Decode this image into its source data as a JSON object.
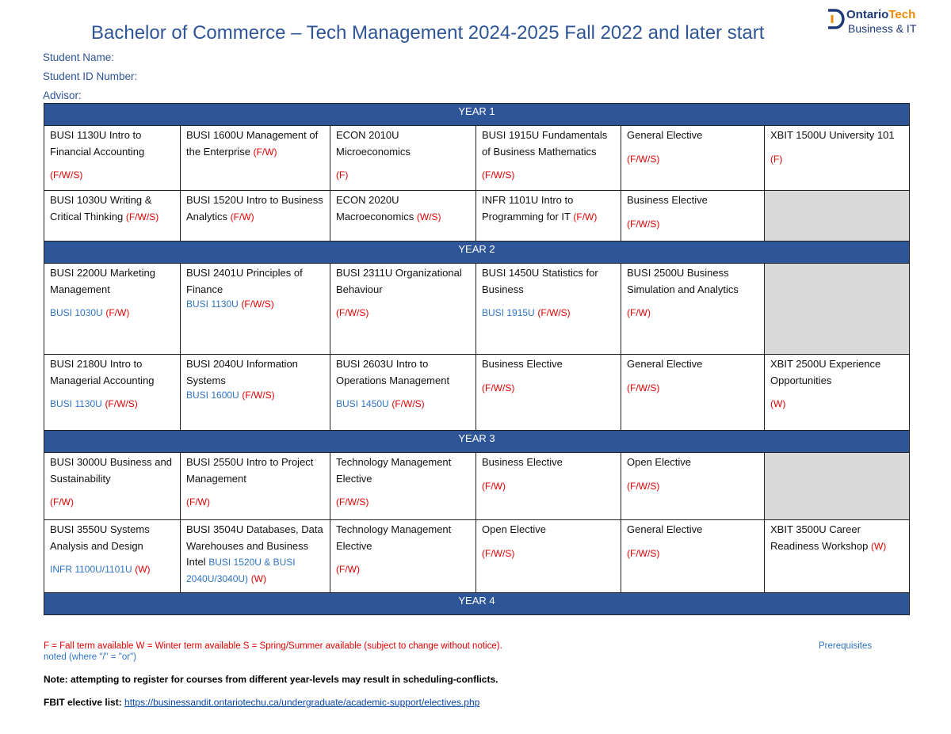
{
  "header": {
    "title": "Bachelor of Commerce – Tech Management 2024-2025 Fall 2022 and later start",
    "logo_name_part1": "Ontario",
    "logo_name_part2": "Tech",
    "logo_subtitle": "Business & IT"
  },
  "fields": [
    "Student Name:",
    "Student ID Number:",
    "Advisor:"
  ],
  "years": [
    {
      "label": "YEAR 1",
      "rows": [
        [
          {
            "course": "BUSI 1130U Intro to Financial Accounting",
            "terms": "(F/W/S)"
          },
          {
            "course": "BUSI 1600U Management of the Enterprise",
            "terms": "(F/W)"
          },
          {
            "course": "ECON 2010U Microeconomics",
            "terms": "(F)"
          },
          {
            "course": "BUSI 1915U Fundamentals of Business Mathematics",
            "terms": "(F/W/S)"
          },
          {
            "course": "General Elective",
            "terms": "(F/W/S)"
          },
          {
            "course": "XBIT 1500U University 101",
            "terms": "(F)"
          }
        ],
        [
          {
            "course": "BUSI 1030U Writing & Critical Thinking",
            "terms": "(F/W/S)"
          },
          {
            "course": "BUSI 1520U Intro to Business Analytics",
            "terms": "(F/W)"
          },
          {
            "course": "ECON 2020U Macroeconomics",
            "terms": "(W/S)"
          },
          {
            "course": "INFR 1101U Intro to Programming for IT",
            "terms": "(F/W)"
          },
          {
            "course": "Business Elective",
            "terms": "(F/W/S)"
          },
          null
        ]
      ]
    },
    {
      "label": "YEAR 2",
      "rows": [
        [
          {
            "course": "BUSI 2200U Marketing Management",
            "prereq": "BUSI 1030U",
            "terms": "(F/W)"
          },
          {
            "course": "BUSI 2401U Principles of Finance",
            "prereq": "BUSI 1130U",
            "terms": "(F/W/S)"
          },
          {
            "course": "BUSI 2311U Organizational Behaviour",
            "terms": "(F/W/S)"
          },
          {
            "course": "BUSI 1450U Statistics for Business",
            "prereq": "BUSI 1915U",
            "terms": "(F/W/S)"
          },
          {
            "course": "BUSI 2500U Business Simulation and Analytics",
            "terms": "(F/W)"
          },
          null
        ],
        [
          {
            "course": "BUSI 2180U Intro to Managerial Accounting",
            "prereq": "BUSI 1130U",
            "terms": "(F/W/S)"
          },
          {
            "course": "BUSI 2040U Information Systems",
            "prereq": "BUSI 1600U",
            "terms": "(F/W/S)"
          },
          {
            "course": "BUSI 2603U Intro to Operations Management",
            "prereq": "BUSI 1450U",
            "terms": "(F/W/S)"
          },
          {
            "course": "Business Elective",
            "terms": "(F/W/S)"
          },
          {
            "course": "General Elective",
            "terms": "(F/W/S)"
          },
          {
            "course": "XBIT 2500U Experience Opportunities",
            "terms": "(W)"
          }
        ]
      ]
    },
    {
      "label": "YEAR 3",
      "rows": [
        [
          {
            "course": "BUSI 3000U Business and Sustainability",
            "terms": "(F/W)"
          },
          {
            "course": "BUSI 2550U Intro to Project Management",
            "terms": "(F/W)"
          },
          {
            "course": "Technology Management Elective",
            "terms": "(F/W/S)"
          },
          {
            "course": "Business Elective",
            "terms": "(F/W)"
          },
          {
            "course": "Open Elective",
            "terms": "(F/W/S)"
          },
          null
        ],
        [
          {
            "course": "BUSI 3550U Systems Analysis and Design",
            "prereq": "INFR 1100U/1101U",
            "terms": "(W)"
          },
          {
            "course": "BUSI 3504U Databases, Data Warehouses and Business Intel",
            "prereq": "BUSI 1520U & BUSI 2040U/3040U)",
            "terms": "(W)"
          },
          {
            "course": "Technology Management Elective",
            "terms": "(F/W)"
          },
          {
            "course": "Open Elective",
            "terms": "(F/W/S)"
          },
          {
            "course": "General Elective",
            "terms": "(F/W/S)"
          },
          {
            "course": "XBIT 3500U Career Readiness Workshop",
            "terms": "(W)"
          }
        ]
      ]
    },
    {
      "label": "YEAR 4",
      "rows": []
    }
  ],
  "footer": {
    "terms_legend": "F = Fall term available W = Winter term available S = Spring/Summer available (subject to change without notice).",
    "prereq_legend_part1": "Prerequisites",
    "prereq_legend_part2": "noted (where \"/\" = \"or\")",
    "note": "Note: attempting to register for courses from different year-levels may result in scheduling-conflicts.",
    "elective_label": "FBIT elective list:",
    "elective_link": "https://businessandit.ontariotechu.ca/undergraduate/academic-support/electives.php"
  }
}
